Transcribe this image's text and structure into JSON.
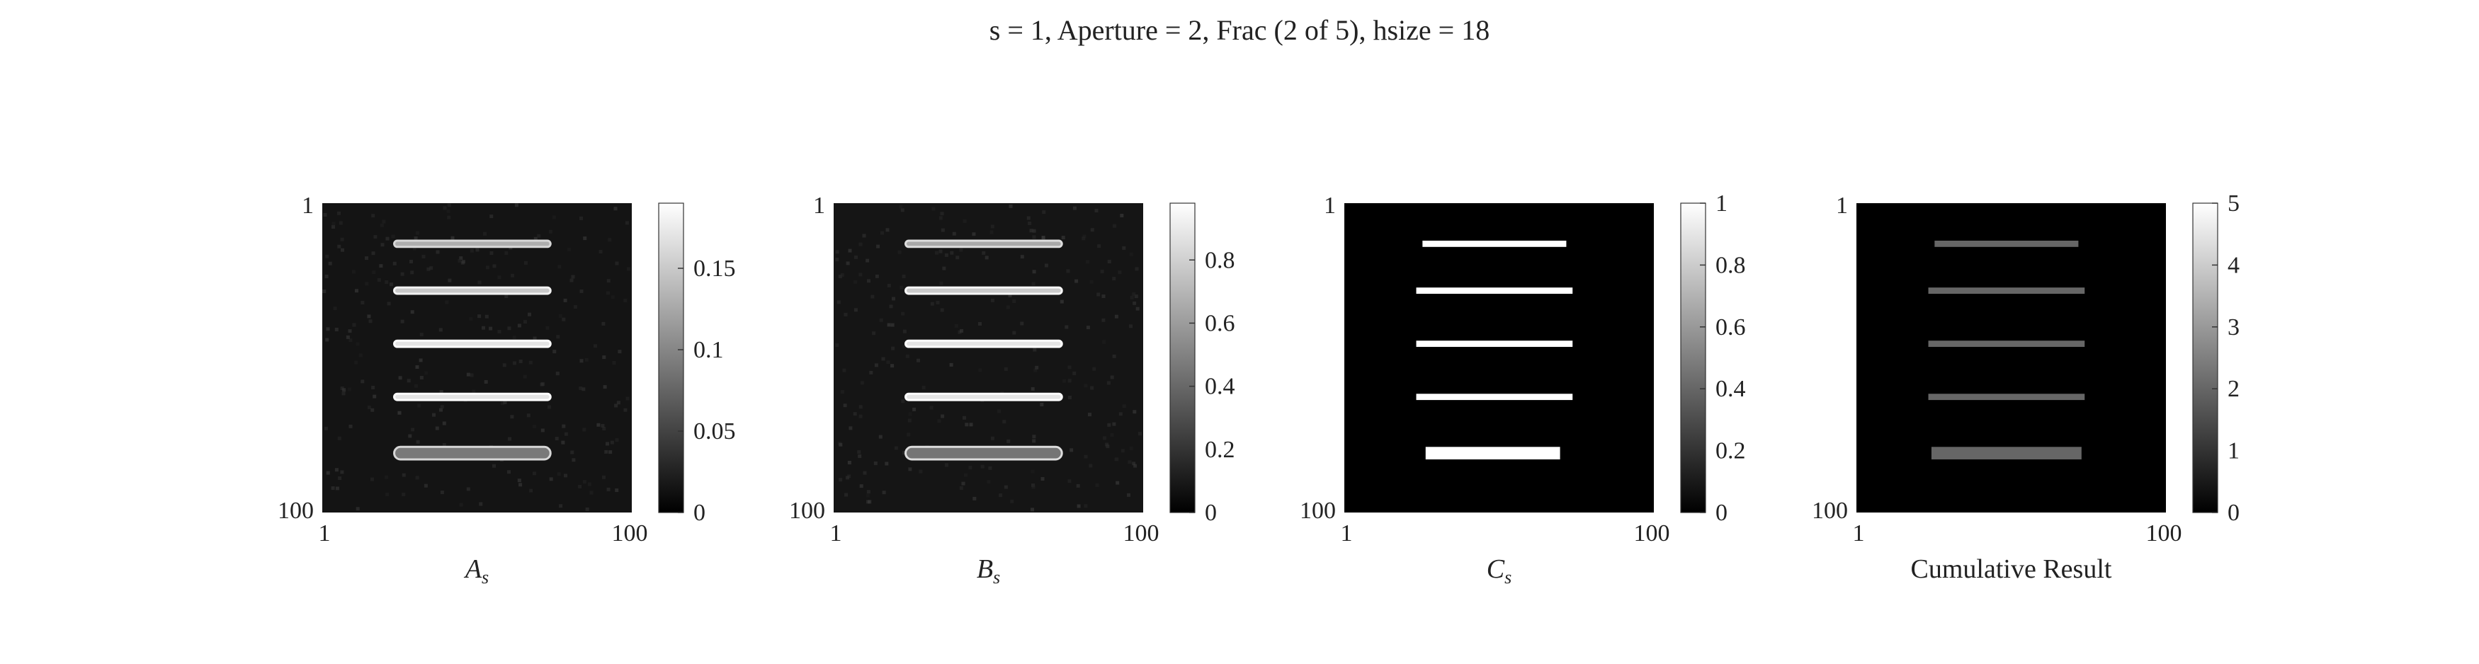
{
  "figure": {
    "suptitle": "s = 1, Aperture = 2, Frac (2 of 5), hsize = 18"
  },
  "chart_data": [
    {
      "type": "heatmap",
      "xlabel_main": "A",
      "xlabel_sub": "s",
      "x_ticks": [
        "1",
        "100"
      ],
      "y_ticks": [
        "1",
        "100"
      ],
      "xlim": [
        1,
        100
      ],
      "ylim": [
        1,
        100
      ],
      "colormap": "gray",
      "clim": [
        0,
        0.19
      ],
      "colorbar_ticks": [
        0,
        0.05,
        0.1,
        0.15
      ],
      "colorbar_tick_labels": [
        "0",
        "0.05",
        "0.1",
        "0.15"
      ],
      "background_level": 0.015,
      "bars": [
        {
          "row": 14,
          "col_start": 24,
          "col_end": 74,
          "level": 0.13,
          "edge_level": 0.16
        },
        {
          "row": 29,
          "col_start": 24,
          "col_end": 74,
          "level": 0.15,
          "edge_level": 0.18
        },
        {
          "row": 46,
          "col_start": 24,
          "col_end": 74,
          "level": 0.17,
          "edge_level": 0.19
        },
        {
          "row": 63,
          "col_start": 24,
          "col_end": 74,
          "level": 0.17,
          "edge_level": 0.19
        },
        {
          "row": 81,
          "col_start": 24,
          "col_end": 74,
          "level": 0.09,
          "edge_level": 0.16
        }
      ]
    },
    {
      "type": "heatmap",
      "xlabel_main": "B",
      "xlabel_sub": "s",
      "x_ticks": [
        "1",
        "100"
      ],
      "y_ticks": [
        "1",
        "100"
      ],
      "xlim": [
        1,
        100
      ],
      "ylim": [
        1,
        100
      ],
      "colormap": "gray",
      "clim": [
        0,
        0.98
      ],
      "colorbar_ticks": [
        0,
        0.2,
        0.4,
        0.6,
        0.8
      ],
      "colorbar_tick_labels": [
        "0",
        "0.2",
        "0.4",
        "0.6",
        "0.8"
      ],
      "background_level": 0.08,
      "bars": [
        {
          "row": 14,
          "col_start": 24,
          "col_end": 74,
          "level": 0.65,
          "edge_level": 0.85
        },
        {
          "row": 29,
          "col_start": 24,
          "col_end": 74,
          "level": 0.78,
          "edge_level": 0.95
        },
        {
          "row": 46,
          "col_start": 24,
          "col_end": 74,
          "level": 0.88,
          "edge_level": 0.98
        },
        {
          "row": 63,
          "col_start": 24,
          "col_end": 74,
          "level": 0.88,
          "edge_level": 0.98
        },
        {
          "row": 81,
          "col_start": 24,
          "col_end": 74,
          "level": 0.45,
          "edge_level": 0.85
        }
      ]
    },
    {
      "type": "heatmap",
      "xlabel_main": "C",
      "xlabel_sub": "s",
      "x_ticks": [
        "1",
        "100"
      ],
      "y_ticks": [
        "1",
        "100"
      ],
      "xlim": [
        1,
        100
      ],
      "ylim": [
        1,
        100
      ],
      "colormap": "gray",
      "clim": [
        0,
        1
      ],
      "colorbar_ticks": [
        0,
        0.2,
        0.4,
        0.6,
        0.8,
        1
      ],
      "colorbar_tick_labels": [
        "0",
        "0.2",
        "0.4",
        "0.6",
        "0.8",
        "1"
      ],
      "background_level": 0,
      "bars": [
        {
          "row": 14,
          "col_start": 26,
          "col_end": 72,
          "level": 1,
          "edge_level": 1
        },
        {
          "row": 29,
          "col_start": 24,
          "col_end": 74,
          "level": 1,
          "edge_level": 1
        },
        {
          "row": 46,
          "col_start": 24,
          "col_end": 74,
          "level": 1,
          "edge_level": 1
        },
        {
          "row": 63,
          "col_start": 24,
          "col_end": 74,
          "level": 1,
          "edge_level": 1
        },
        {
          "row": 81,
          "col_start": 27,
          "col_end": 70,
          "level": 1,
          "edge_level": 1
        }
      ]
    },
    {
      "type": "heatmap",
      "xlabel": "Cumulative Result",
      "x_ticks": [
        "1",
        "100"
      ],
      "y_ticks": [
        "1",
        "100"
      ],
      "xlim": [
        1,
        100
      ],
      "ylim": [
        1,
        100
      ],
      "colormap": "gray",
      "clim": [
        0,
        5
      ],
      "colorbar_ticks": [
        0,
        1,
        2,
        3,
        4,
        5
      ],
      "colorbar_tick_labels": [
        "0",
        "1",
        "2",
        "3",
        "4",
        "5"
      ],
      "background_level": 0,
      "bars": [
        {
          "row": 14,
          "col_start": 26,
          "col_end": 72,
          "level": 2,
          "edge_level": 2
        },
        {
          "row": 29,
          "col_start": 24,
          "col_end": 74,
          "level": 2,
          "edge_level": 2
        },
        {
          "row": 46,
          "col_start": 24,
          "col_end": 74,
          "level": 2,
          "edge_level": 2
        },
        {
          "row": 63,
          "col_start": 24,
          "col_end": 74,
          "level": 2,
          "edge_level": 2
        },
        {
          "row": 81,
          "col_start": 25,
          "col_end": 73,
          "level": 2,
          "edge_level": 2
        }
      ]
    }
  ]
}
